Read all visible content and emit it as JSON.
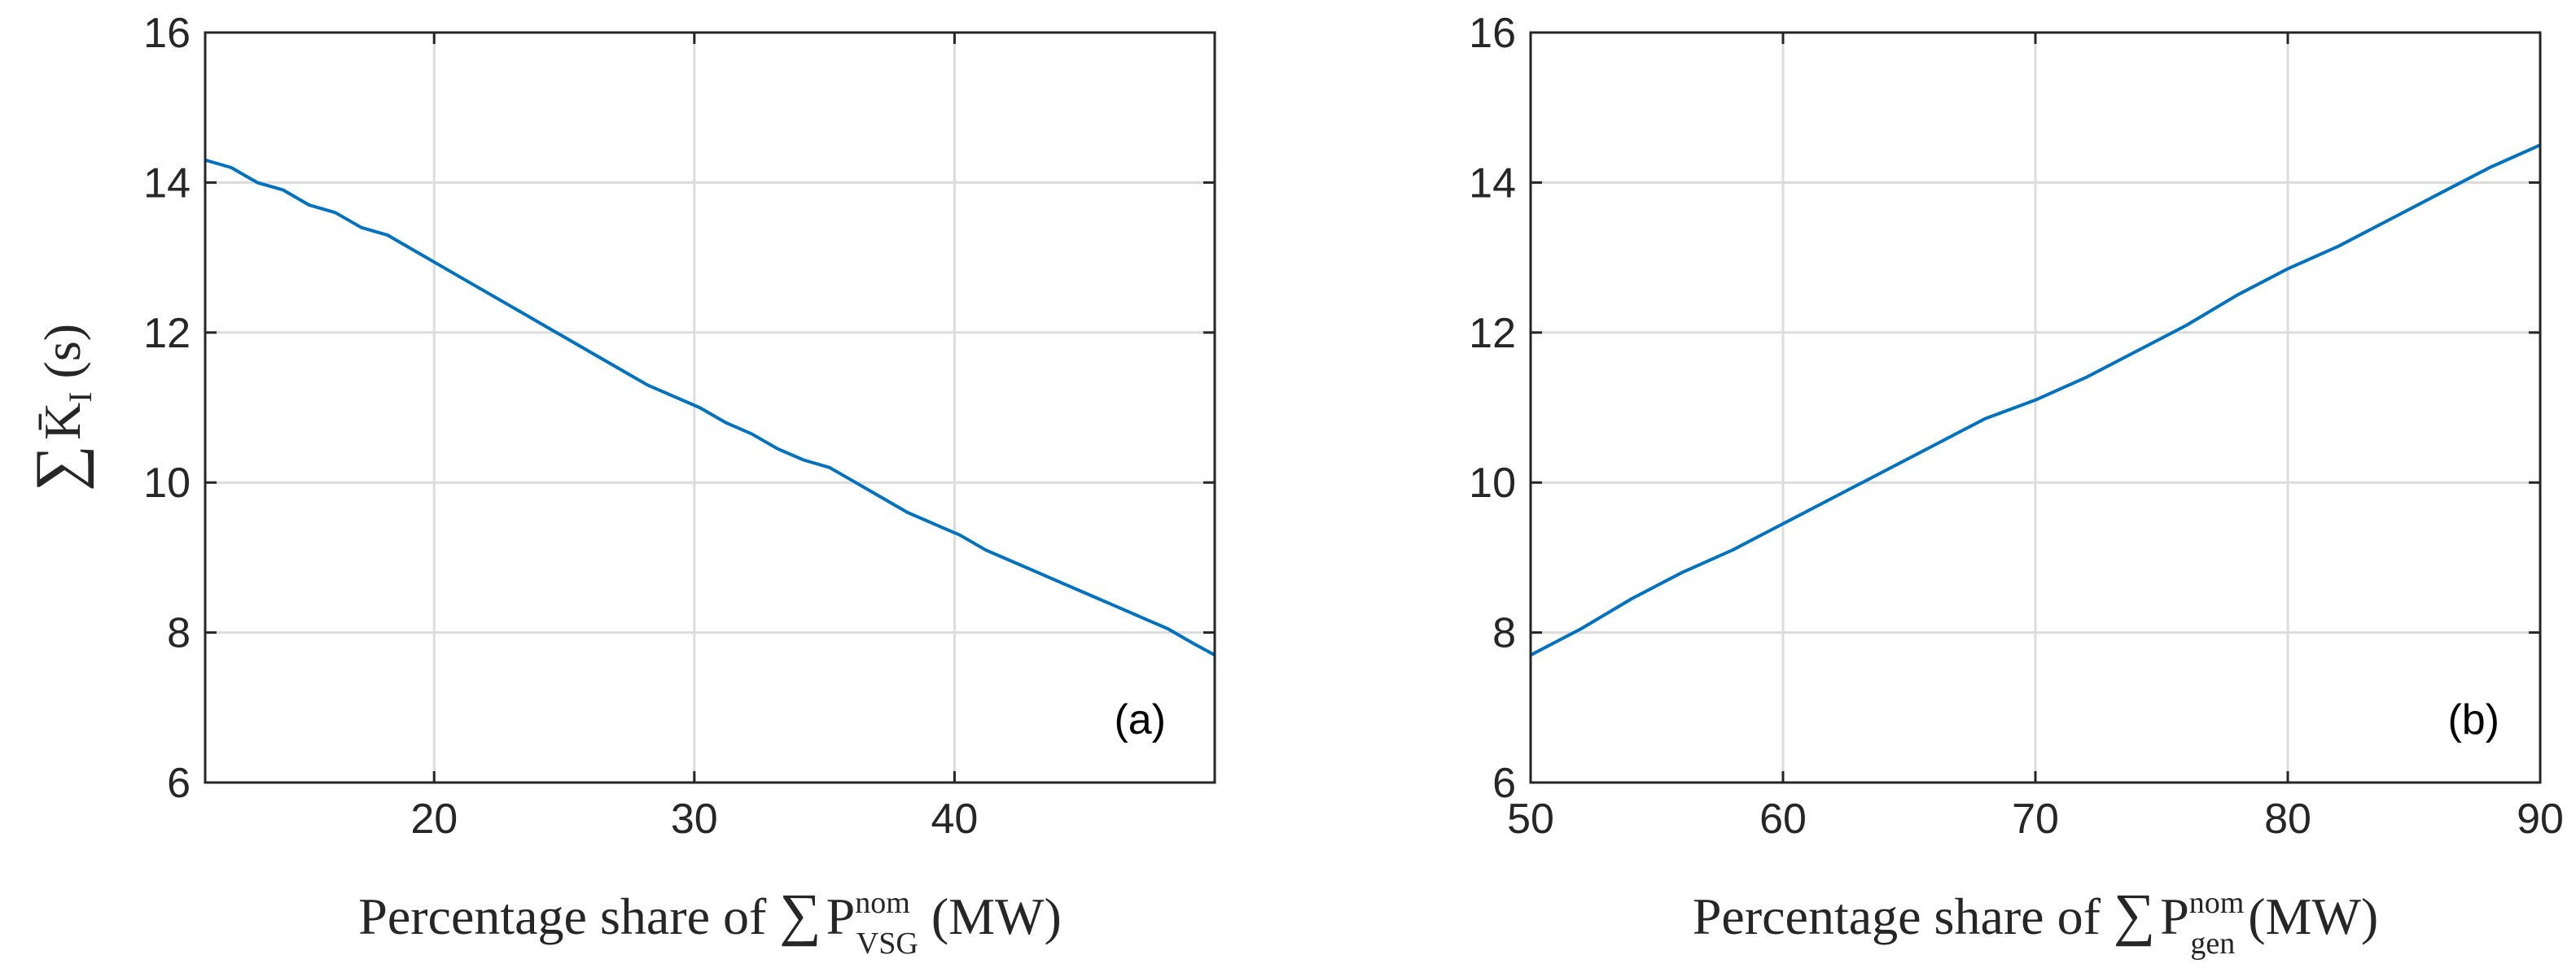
{
  "colors": {
    "line": "#0072BD",
    "grid": "#DCDCDC",
    "axis": "#262626"
  },
  "chart_data": [
    {
      "type": "line",
      "panel_label": "(a)",
      "xlabel": {
        "prefix": "Percentage share of ",
        "symbol": "∑",
        "var": "P",
        "sup": "nom",
        "sub": "VSG",
        "unit": " (MW)"
      },
      "ylabel": {
        "symbol": "∑",
        "var": "K̄",
        "sub": "I",
        "unit": " (s)"
      },
      "xlim": [
        11.2,
        50
      ],
      "ylim": [
        6,
        16
      ],
      "xticks": [
        20,
        30,
        40
      ],
      "xtick_labels": [
        "20",
        "30",
        "40"
      ],
      "yticks": [
        6,
        8,
        10,
        12,
        14,
        16
      ],
      "ytick_labels": [
        "6",
        "8",
        "10",
        "12",
        "14",
        "16"
      ],
      "grid": true,
      "series": [
        {
          "name": "sum of K_I",
          "x": [
            11.2,
            12.2,
            13.2,
            14.2,
            15.2,
            16.2,
            17.2,
            18.2,
            19.2,
            20.2,
            21.2,
            22.2,
            23.2,
            24.2,
            25.2,
            26.2,
            27.2,
            28.2,
            29.2,
            30.2,
            31.2,
            32.2,
            33.2,
            34.2,
            35.2,
            36.2,
            37.2,
            38.2,
            39.2,
            40.2,
            41.2,
            42.2,
            43.2,
            44.2,
            45.2,
            46.2,
            47.2,
            48.2,
            49.2,
            50.0
          ],
          "y": [
            14.3,
            14.2,
            14.0,
            13.9,
            13.7,
            13.6,
            13.4,
            13.3,
            13.1,
            12.9,
            12.7,
            12.5,
            12.3,
            12.1,
            11.9,
            11.7,
            11.5,
            11.3,
            11.15,
            11.0,
            10.8,
            10.65,
            10.45,
            10.3,
            10.2,
            10.0,
            9.8,
            9.6,
            9.45,
            9.3,
            9.1,
            8.95,
            8.8,
            8.65,
            8.5,
            8.35,
            8.2,
            8.05,
            7.85,
            7.7
          ]
        }
      ]
    },
    {
      "type": "line",
      "panel_label": "(b)",
      "xlabel": {
        "prefix": "Percentage share of ",
        "symbol": "∑",
        "var": "P",
        "sup": "nom",
        "sub": "gen",
        "unit": " (MW)"
      },
      "xlim": [
        50,
        90
      ],
      "ylim": [
        6,
        16
      ],
      "xticks": [
        50,
        60,
        70,
        80,
        90
      ],
      "xtick_labels": [
        "50",
        "60",
        "70",
        "80",
        "90"
      ],
      "yticks": [
        6,
        8,
        10,
        12,
        14,
        16
      ],
      "ytick_labels": [
        "6",
        "8",
        "10",
        "12",
        "14",
        "16"
      ],
      "grid": true,
      "series": [
        {
          "name": "sum of K_I",
          "x": [
            50,
            52,
            54,
            56,
            58,
            60,
            62,
            64,
            66,
            68,
            70,
            72,
            74,
            76,
            78,
            80,
            82,
            84,
            86,
            88,
            90
          ],
          "y": [
            7.7,
            8.05,
            8.45,
            8.8,
            9.1,
            9.45,
            9.8,
            10.15,
            10.5,
            10.85,
            11.1,
            11.4,
            11.75,
            12.1,
            12.5,
            12.85,
            13.15,
            13.5,
            13.85,
            14.2,
            14.5
          ]
        }
      ]
    }
  ]
}
